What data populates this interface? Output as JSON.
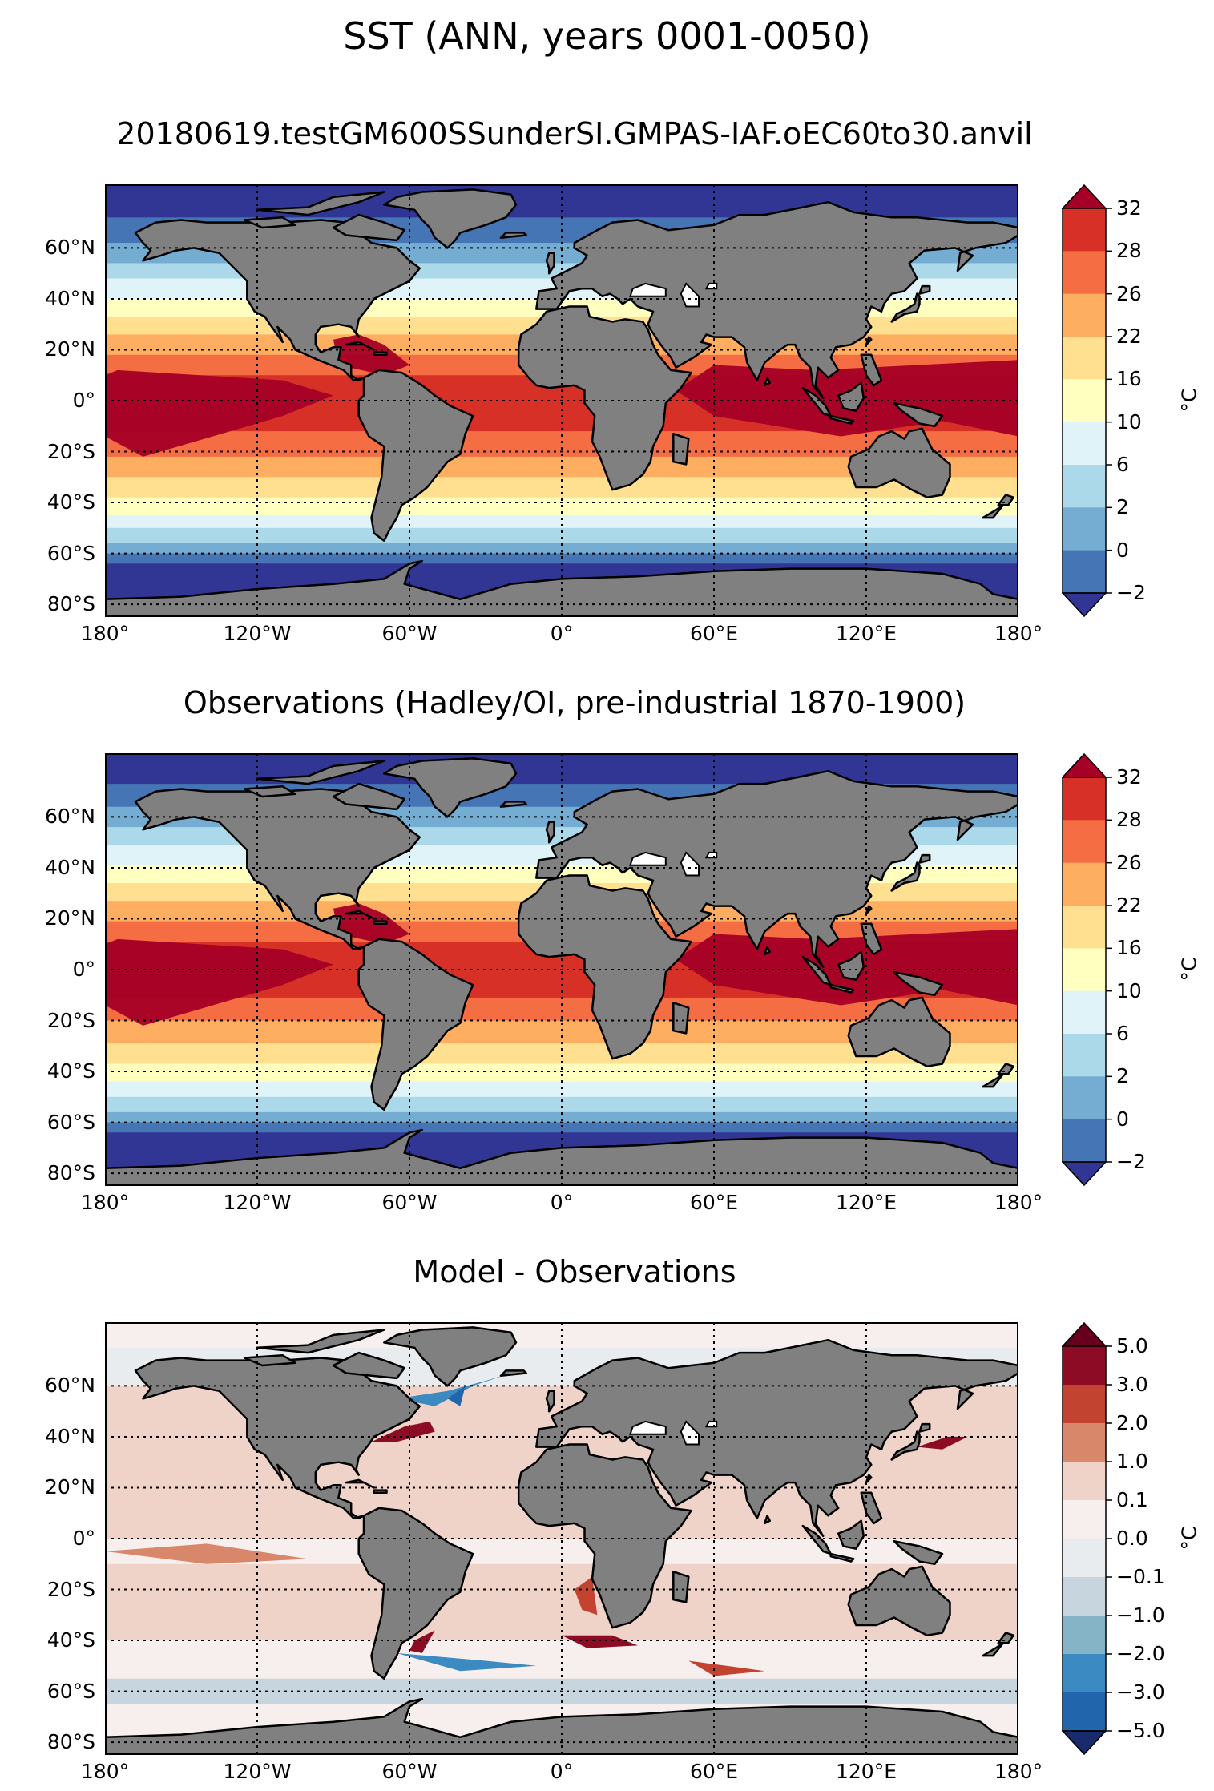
{
  "title": "SST (ANN, years 0001-0050)",
  "lat_ticks": [
    "60°N",
    "40°N",
    "20°N",
    "0°",
    "20°S",
    "40°S",
    "60°S",
    "80°S"
  ],
  "lon_ticks": [
    "180°",
    "120°W",
    "60°W",
    "0°",
    "60°E",
    "120°E",
    "180°"
  ],
  "colors": {
    "land": "#808080",
    "coastline": "#000000",
    "grid": "#000000"
  },
  "panels": [
    {
      "title": "20180619.testGM600SSunderSI.GMPAS-IAF.oEC60to30.anvil",
      "colorbar": {
        "levels": [
          "32",
          "28",
          "26",
          "22",
          "16",
          "10",
          "6",
          "2",
          "0",
          "−2"
        ],
        "colors": [
          "#a50026",
          "#d73027",
          "#f46d43",
          "#fdae61",
          "#fee090",
          "#ffffbf",
          "#e0f3f8",
          "#abd9e9",
          "#74add1",
          "#4575b4",
          "#313695"
        ],
        "unit": "°C"
      }
    },
    {
      "title": "Observations (Hadley/OI, pre-industrial 1870-1900)",
      "colorbar": {
        "levels": [
          "32",
          "28",
          "26",
          "22",
          "16",
          "10",
          "6",
          "2",
          "0",
          "−2"
        ],
        "colors": [
          "#a50026",
          "#d73027",
          "#f46d43",
          "#fdae61",
          "#fee090",
          "#ffffbf",
          "#e0f3f8",
          "#abd9e9",
          "#74add1",
          "#4575b4",
          "#313695"
        ],
        "unit": "°C"
      }
    },
    {
      "title": "Model - Observations",
      "colorbar": {
        "levels": [
          "5.0",
          "3.0",
          "2.0",
          "1.0",
          "0.1",
          "0.0",
          "−0.1",
          "−1.0",
          "−2.0",
          "−3.0",
          "−5.0"
        ],
        "colors": [
          "#67001f",
          "#8e0b25",
          "#c2432f",
          "#d9876a",
          "#f0d3c8",
          "#f7eeee",
          "#e8ecef",
          "#c7d6de",
          "#86b4c7",
          "#3b8ac1",
          "#2166ac",
          "#1a2b6b"
        ],
        "unit": "°C"
      }
    }
  ]
}
